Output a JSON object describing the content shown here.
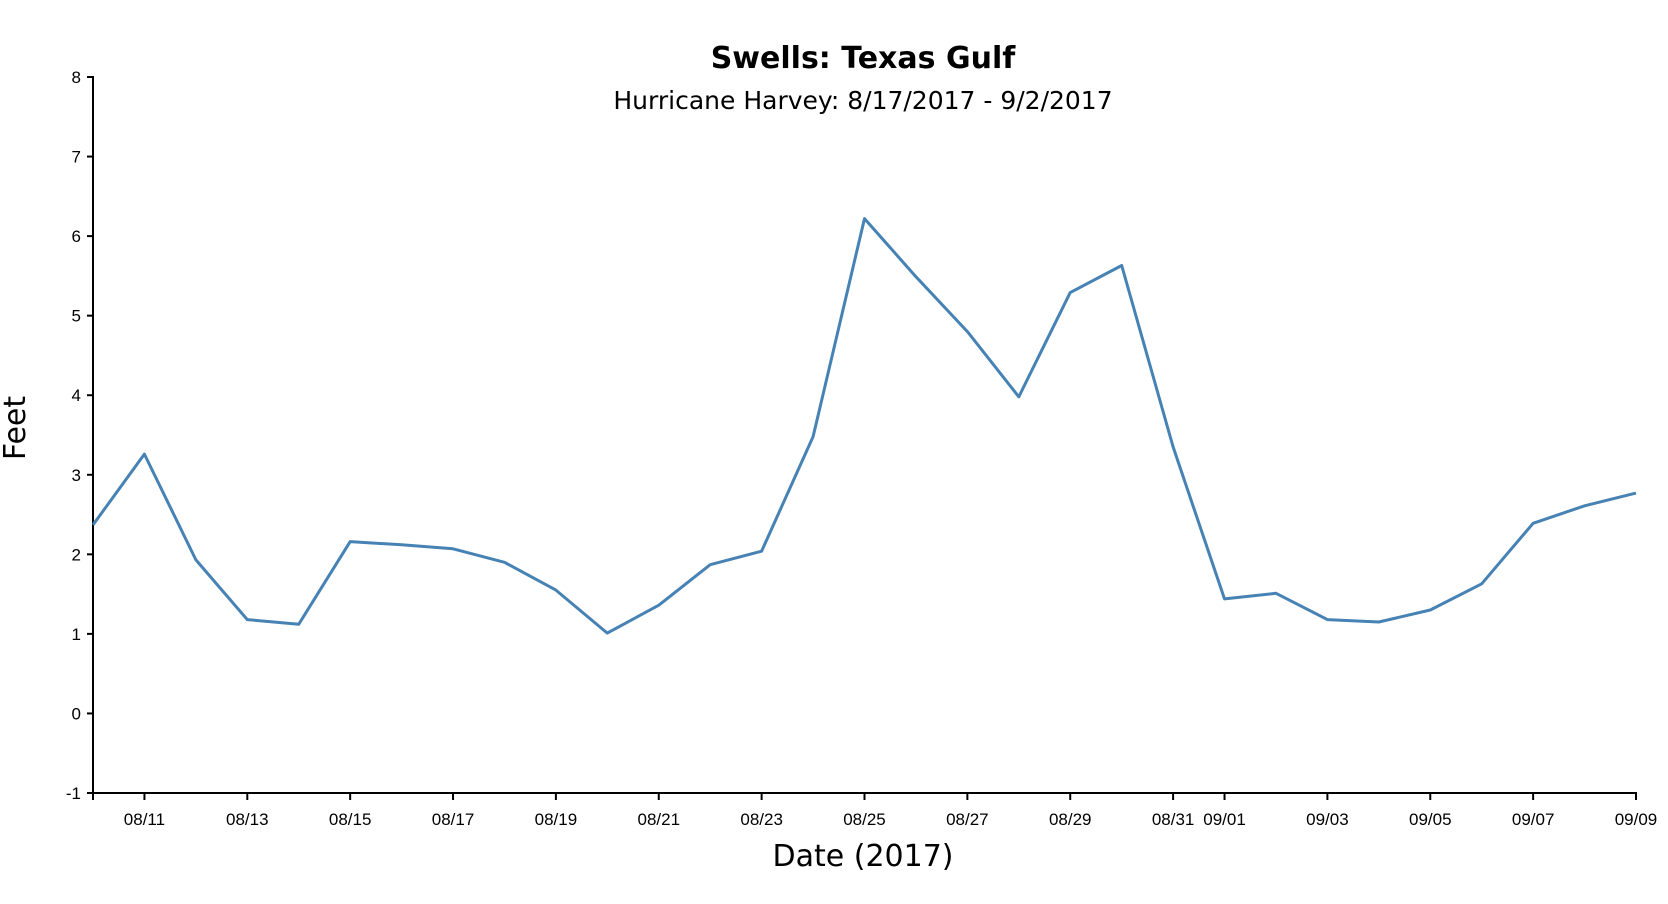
{
  "chart_data": {
    "type": "line",
    "title": "Swells: Texas Gulf",
    "subtitle": "Hurricane Harvey: 8/17/2017 - 9/2/2017",
    "xlabel": "Date (2017)",
    "ylabel": "Feet",
    "ylim": [
      -1,
      8
    ],
    "yticks": [
      "-1",
      "0",
      "1",
      "2",
      "3",
      "4",
      "5",
      "6",
      "7",
      "8"
    ],
    "xlim": [
      "2017-08-10",
      "2017-09-09"
    ],
    "xticks": [
      {
        "date": "2017-08-11",
        "label": "08/11"
      },
      {
        "date": "2017-08-13",
        "label": "08/13"
      },
      {
        "date": "2017-08-15",
        "label": "08/15"
      },
      {
        "date": "2017-08-17",
        "label": "08/17"
      },
      {
        "date": "2017-08-19",
        "label": "08/19"
      },
      {
        "date": "2017-08-21",
        "label": "08/21"
      },
      {
        "date": "2017-08-23",
        "label": "08/23"
      },
      {
        "date": "2017-08-25",
        "label": "08/25"
      },
      {
        "date": "2017-08-27",
        "label": "08/27"
      },
      {
        "date": "2017-08-29",
        "label": "08/29"
      },
      {
        "date": "2017-08-31",
        "label": "08/31"
      },
      {
        "date": "2017-09-01",
        "label": "09/01"
      },
      {
        "date": "2017-09-03",
        "label": "09/03"
      },
      {
        "date": "2017-09-05",
        "label": "09/05"
      },
      {
        "date": "2017-09-07",
        "label": "09/07"
      },
      {
        "date": "2017-09-09",
        "label": "09/09"
      }
    ],
    "grid": false,
    "legend": "none",
    "series_color": "#4682b4",
    "series": [
      {
        "x": [
          "2017-08-10",
          "2017-08-11",
          "2017-08-12",
          "2017-08-13",
          "2017-08-14",
          "2017-08-15",
          "2017-08-16",
          "2017-08-17",
          "2017-08-18",
          "2017-08-19",
          "2017-08-20",
          "2017-08-21",
          "2017-08-22",
          "2017-08-23",
          "2017-08-24",
          "2017-08-25",
          "2017-08-26",
          "2017-08-27",
          "2017-08-28",
          "2017-08-29",
          "2017-08-30",
          "2017-08-31",
          "2017-09-01",
          "2017-09-02",
          "2017-09-03",
          "2017-09-04",
          "2017-09-05",
          "2017-09-06",
          "2017-09-07",
          "2017-09-08",
          "2017-09-09"
        ],
        "values": [
          2.37,
          3.26,
          1.93,
          1.18,
          1.12,
          2.16,
          2.12,
          2.07,
          1.9,
          1.55,
          1.01,
          1.36,
          1.87,
          2.04,
          3.48,
          6.22,
          5.49,
          4.8,
          3.98,
          5.29,
          5.63,
          3.35,
          1.44,
          1.51,
          1.18,
          1.15,
          1.3,
          1.63,
          2.39,
          2.61,
          2.77
        ]
      }
    ]
  }
}
